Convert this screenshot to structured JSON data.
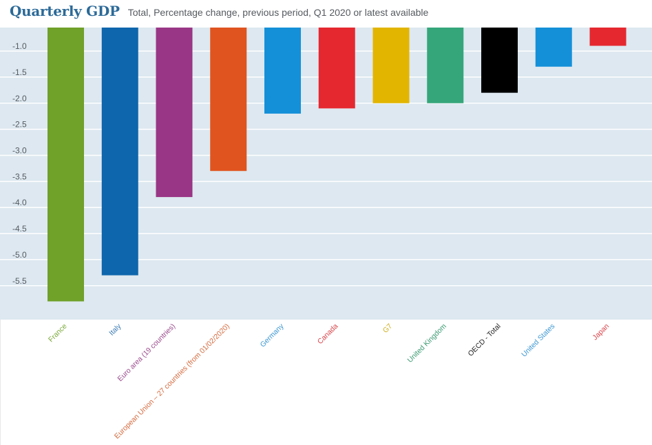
{
  "header": {
    "title": "Quarterly GDP",
    "subtitle": "Total, Percentage change, previous period, Q1 2020 or latest available"
  },
  "chart_data": {
    "type": "bar",
    "title": "Quarterly GDP",
    "subtitle": "Total, Percentage change, previous period, Q1 2020 or latest available",
    "xlabel": "",
    "ylabel": "",
    "ylim": [
      -6.15,
      -0.55
    ],
    "yticks": [
      -1.0,
      -1.5,
      -2.0,
      -2.5,
      -3.0,
      -3.5,
      -4.0,
      -4.5,
      -5.0,
      -5.5
    ],
    "ytick_labels": [
      "-1.0",
      "-1.5",
      "-2.0",
      "-2.5",
      "-3.0",
      "-3.5",
      "-4.0",
      "-4.5",
      "-5.0",
      "-5.5"
    ],
    "grid": true,
    "bars_hang_from": "top",
    "categories": [
      "France",
      "Italy",
      "Euro area (19 countries)",
      "European Union – 27 countries (from 01/02/2020)",
      "Germany",
      "Canada",
      "G7",
      "United Kingdom",
      "OECD - Total",
      "United States",
      "Japan"
    ],
    "values": [
      -5.8,
      -5.3,
      -3.8,
      -3.3,
      -2.2,
      -2.1,
      -2.0,
      -2.0,
      -1.8,
      -1.3,
      -0.9
    ],
    "colors": [
      "#70a129",
      "#0e66ac",
      "#993686",
      "#e0541f",
      "#1490d9",
      "#e5282f",
      "#e2b500",
      "#35a67a",
      "#000000",
      "#1490d9",
      "#e5282f"
    ],
    "label_colors": [
      "#7aa83a",
      "#3a7ab5",
      "#9b4a8c",
      "#d46a3e",
      "#3c97d3",
      "#d9434a",
      "#cfae1e",
      "#3c9a73",
      "#222222",
      "#3c97d3",
      "#d9434a"
    ],
    "background": "#dde8f0",
    "gridline_color": "#ffffff"
  }
}
